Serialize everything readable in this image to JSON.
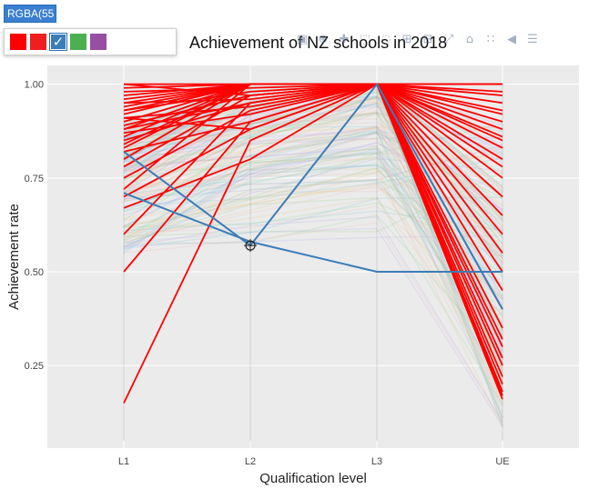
{
  "chart_data": {
    "type": "line",
    "title": "Achievement of NZ schools in 2018",
    "xlabel": "Qualification level",
    "ylabel": "Achievement rate",
    "categories": [
      "L1",
      "L2",
      "L3",
      "UE"
    ],
    "ylim": [
      0.03,
      1.05
    ],
    "yticks": [
      0.25,
      0.5,
      0.75,
      1.0
    ],
    "ytick_labels": [
      "0.25",
      "0.50",
      "0.75",
      "1.00"
    ],
    "grid": true,
    "highlight_series": [
      {
        "values": [
          0.15,
          0.85,
          1.0,
          0.17
        ]
      },
      {
        "values": [
          0.5,
          0.9,
          1.0,
          0.2
        ]
      },
      {
        "values": [
          0.6,
          0.95,
          1.0,
          0.25
        ]
      },
      {
        "values": [
          0.67,
          0.8,
          1.0,
          0.3
        ]
      },
      {
        "values": [
          0.7,
          0.88,
          1.0,
          0.35
        ]
      },
      {
        "values": [
          0.72,
          1.0,
          1.0,
          0.4
        ]
      },
      {
        "values": [
          0.75,
          0.93,
          1.0,
          0.45
        ]
      },
      {
        "values": [
          0.78,
          0.97,
          1.0,
          0.5
        ]
      },
      {
        "values": [
          0.8,
          1.0,
          1.0,
          0.55
        ]
      },
      {
        "values": [
          0.82,
          0.9,
          1.0,
          0.6
        ]
      },
      {
        "values": [
          0.84,
          1.0,
          1.0,
          0.65
        ]
      },
      {
        "values": [
          0.85,
          0.95,
          1.0,
          0.7
        ]
      },
      {
        "values": [
          0.86,
          1.0,
          1.0,
          0.75
        ]
      },
      {
        "values": [
          0.87,
          0.92,
          1.0,
          0.78
        ]
      },
      {
        "values": [
          0.88,
          1.0,
          1.0,
          0.8
        ]
      },
      {
        "values": [
          0.89,
          0.97,
          1.0,
          0.83
        ]
      },
      {
        "values": [
          0.9,
          1.0,
          1.0,
          0.85
        ]
      },
      {
        "values": [
          0.91,
          0.94,
          1.0,
          0.88
        ]
      },
      {
        "values": [
          0.92,
          1.0,
          1.0,
          0.9
        ]
      },
      {
        "values": [
          0.93,
          0.98,
          1.0,
          0.92
        ]
      },
      {
        "values": [
          0.94,
          1.0,
          1.0,
          0.95
        ]
      },
      {
        "values": [
          0.95,
          0.96,
          1.0,
          0.97
        ]
      },
      {
        "values": [
          0.96,
          1.0,
          1.0,
          1.0
        ]
      },
      {
        "values": [
          0.97,
          1.0,
          1.0,
          0.98
        ]
      },
      {
        "values": [
          0.98,
          0.99,
          1.0,
          1.0
        ]
      },
      {
        "values": [
          0.99,
          1.0,
          1.0,
          0.93
        ]
      },
      {
        "values": [
          1.0,
          1.0,
          1.0,
          1.0
        ]
      },
      {
        "values": [
          1.0,
          0.97,
          1.0,
          0.86
        ]
      },
      {
        "values": [
          0.83,
          1.0,
          1.0,
          0.22
        ]
      },
      {
        "values": [
          0.91,
          0.88,
          1.0,
          0.18
        ]
      },
      {
        "values": [
          0.95,
          1.0,
          1.0,
          0.27
        ]
      },
      {
        "values": [
          0.88,
          0.95,
          1.0,
          0.32
        ]
      },
      {
        "values": [
          0.93,
          1.0,
          1.0,
          0.16
        ]
      }
    ],
    "blue_series": [
      {
        "values": [
          0.71,
          0.58,
          0.5,
          0.5
        ]
      },
      {
        "values": [
          0.82,
          0.57,
          1.0,
          0.4
        ]
      }
    ],
    "highlight_color": "#ff0000",
    "blue_color": "#3b7db8",
    "background_color": "#ebebeb"
  },
  "color_picker": {
    "input_value": "RGBA(55",
    "swatches": [
      {
        "name": "red",
        "color": "#ff0000",
        "selected": false
      },
      {
        "name": "red",
        "color": "#ef1f1f",
        "selected": false
      },
      {
        "name": "blue",
        "color": "#3b7db8",
        "selected": true
      },
      {
        "name": "green",
        "color": "#4caf50",
        "selected": false
      },
      {
        "name": "purple",
        "color": "#984ea3",
        "selected": false
      }
    ]
  },
  "modebar": {
    "buttons": [
      "camera-icon",
      "zoom-icon",
      "pan-icon",
      "box-select-icon",
      "lasso-icon",
      "zoom-in-icon",
      "zoom-out-icon",
      "autoscale-icon",
      "home-icon",
      "spike-icon",
      "hover-closest-icon",
      "hover-compare-icon"
    ]
  }
}
